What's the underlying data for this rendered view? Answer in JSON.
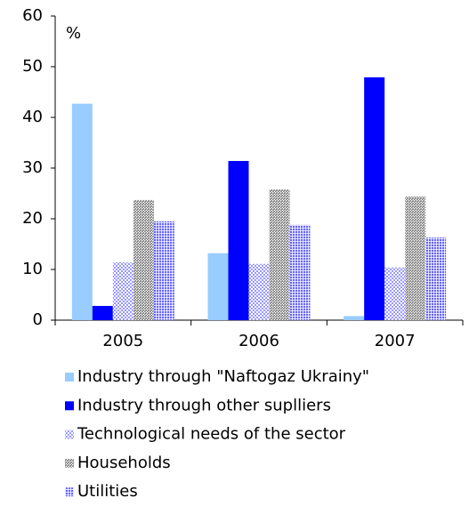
{
  "chart_data": {
    "type": "bar",
    "y_label": "%",
    "categories": [
      "2005",
      "2006",
      "2007"
    ],
    "series": [
      {
        "name": "Industry through \"Naftogaz Ukrainy\"",
        "color": "#99ccff",
        "pattern": "solid",
        "values": [
          42.7,
          13.2,
          0.8
        ]
      },
      {
        "name": "Industry through other suplliers",
        "color": "#0000ff",
        "pattern": "solid",
        "values": [
          2.8,
          31.4,
          47.9
        ]
      },
      {
        "name": "Technological needs of the sector",
        "color": "#9999ff",
        "pattern": "dots",
        "values": [
          11.4,
          11.1,
          10.4
        ]
      },
      {
        "name": "Households",
        "color": "#808080",
        "pattern": "diagonal",
        "values": [
          23.7,
          25.8,
          24.4
        ]
      },
      {
        "name": "Utilities",
        "color": "#6666ff",
        "pattern": "grid",
        "values": [
          19.5,
          18.8,
          16.3
        ]
      }
    ],
    "ylim": [
      0,
      60
    ],
    "yticks": [
      0,
      10,
      20,
      30,
      40,
      50,
      60
    ],
    "legend": "bottom"
  }
}
